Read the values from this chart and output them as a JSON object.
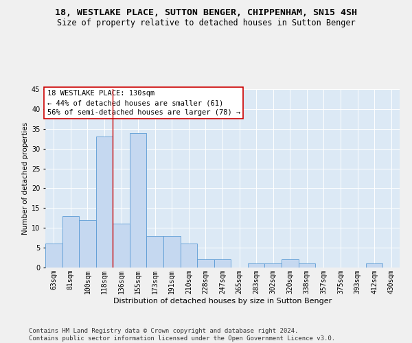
{
  "title": "18, WESTLAKE PLACE, SUTTON BENGER, CHIPPENHAM, SN15 4SH",
  "subtitle": "Size of property relative to detached houses in Sutton Benger",
  "xlabel": "Distribution of detached houses by size in Sutton Benger",
  "ylabel": "Number of detached properties",
  "categories": [
    "63sqm",
    "81sqm",
    "100sqm",
    "118sqm",
    "136sqm",
    "155sqm",
    "173sqm",
    "191sqm",
    "210sqm",
    "228sqm",
    "247sqm",
    "265sqm",
    "283sqm",
    "302sqm",
    "320sqm",
    "338sqm",
    "357sqm",
    "375sqm",
    "393sqm",
    "412sqm",
    "430sqm"
  ],
  "values": [
    6,
    13,
    12,
    33,
    11,
    34,
    8,
    8,
    6,
    2,
    2,
    0,
    1,
    1,
    2,
    1,
    0,
    0,
    0,
    1,
    0
  ],
  "bar_color": "#c5d8f0",
  "bar_edge_color": "#5b9bd5",
  "ylim": [
    0,
    45
  ],
  "yticks": [
    0,
    5,
    10,
    15,
    20,
    25,
    30,
    35,
    40,
    45
  ],
  "vline_color": "#cc0000",
  "annotation_text": "18 WESTLAKE PLACE: 130sqm\n← 44% of detached houses are smaller (61)\n56% of semi-detached houses are larger (78) →",
  "annotation_box_color": "#ffffff",
  "annotation_box_edge": "#cc0000",
  "footer": "Contains HM Land Registry data © Crown copyright and database right 2024.\nContains public sector information licensed under the Open Government Licence v3.0.",
  "background_color": "#dce9f5",
  "grid_color": "#ffffff",
  "fig_background": "#f0f0f0",
  "title_fontsize": 9.5,
  "subtitle_fontsize": 8.5,
  "xlabel_fontsize": 8,
  "ylabel_fontsize": 7.5,
  "tick_fontsize": 7,
  "annotation_fontsize": 7.5,
  "footer_fontsize": 6.5
}
